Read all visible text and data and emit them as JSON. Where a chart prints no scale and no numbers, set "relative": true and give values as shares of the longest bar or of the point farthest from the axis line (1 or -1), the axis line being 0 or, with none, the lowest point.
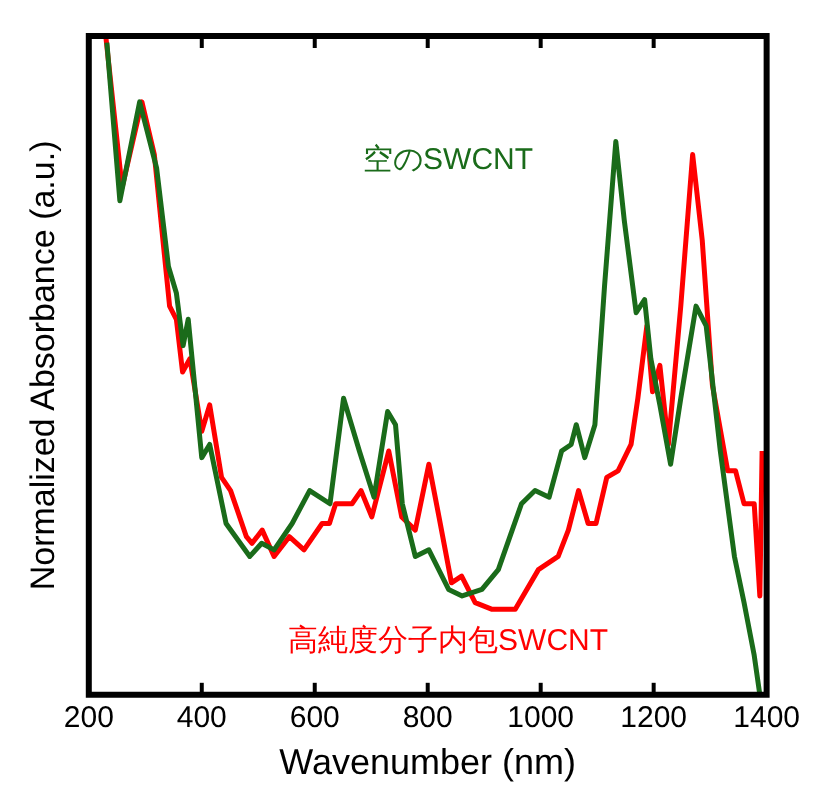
{
  "chart_data": {
    "type": "line",
    "xlabel": "Wavenumber (nm)",
    "ylabel": "Normalized Absorbance (a.u.)",
    "relative": true,
    "xlim": [
      200,
      1400
    ],
    "xticks": [
      200,
      400,
      600,
      800,
      1000,
      1200,
      1400
    ],
    "grid": false,
    "legend": false,
    "marker": "none",
    "line_style": "solid",
    "series": [
      {
        "name": "空のSWCNT",
        "color": "#1a6b1a",
        "x": [
          232,
          255,
          290,
          320,
          341,
          355,
          367,
          376,
          400,
          414,
          443,
          485,
          506,
          528,
          560,
          591,
          627,
          651,
          679,
          705,
          729,
          743,
          755,
          778,
          802,
          837,
          861,
          896,
          925,
          966,
          990,
          1015,
          1037,
          1054,
          1063,
          1078,
          1096,
          1113,
          1133,
          1148,
          1169,
          1184,
          1195,
          1211,
          1230,
          1248,
          1275,
          1293,
          1318,
          1343,
          1360,
          1378,
          1388
        ],
        "values": [
          0.99,
          0.75,
          0.9,
          0.8,
          0.65,
          0.61,
          0.53,
          0.57,
          0.36,
          0.38,
          0.26,
          0.21,
          0.23,
          0.22,
          0.26,
          0.31,
          0.29,
          0.45,
          0.37,
          0.3,
          0.43,
          0.41,
          0.29,
          0.21,
          0.22,
          0.16,
          0.15,
          0.16,
          0.19,
          0.29,
          0.31,
          0.3,
          0.37,
          0.38,
          0.41,
          0.36,
          0.41,
          0.62,
          0.84,
          0.72,
          0.58,
          0.6,
          0.51,
          0.44,
          0.35,
          0.45,
          0.59,
          0.56,
          0.37,
          0.21,
          0.14,
          0.06,
          0.0
        ]
      },
      {
        "name": "高純度分子内包SWCNT",
        "color": "#ff0000",
        "x": [
          230,
          259,
          294,
          316,
          343,
          355,
          366,
          379,
          400,
          414,
          435,
          451,
          479,
          489,
          507,
          528,
          555,
          581,
          613,
          626,
          637,
          666,
          682,
          701,
          731,
          754,
          778,
          802,
          820,
          842,
          860,
          884,
          913,
          955,
          996,
          1031,
          1049,
          1067,
          1084,
          1098,
          1117,
          1137,
          1160,
          1172,
          1188,
          1198,
          1211,
          1226,
          1248,
          1269,
          1286,
          1304,
          1331,
          1345,
          1360,
          1378,
          1388,
          1392
        ],
        "values": [
          1.0,
          0.77,
          0.9,
          0.82,
          0.59,
          0.57,
          0.49,
          0.51,
          0.4,
          0.44,
          0.33,
          0.31,
          0.24,
          0.23,
          0.25,
          0.21,
          0.24,
          0.22,
          0.26,
          0.26,
          0.29,
          0.29,
          0.31,
          0.27,
          0.37,
          0.27,
          0.25,
          0.35,
          0.27,
          0.17,
          0.18,
          0.14,
          0.13,
          0.13,
          0.19,
          0.21,
          0.25,
          0.31,
          0.26,
          0.26,
          0.33,
          0.34,
          0.38,
          0.45,
          0.56,
          0.46,
          0.5,
          0.38,
          0.59,
          0.82,
          0.69,
          0.47,
          0.34,
          0.34,
          0.29,
          0.29,
          0.15,
          0.37
        ]
      }
    ]
  }
}
